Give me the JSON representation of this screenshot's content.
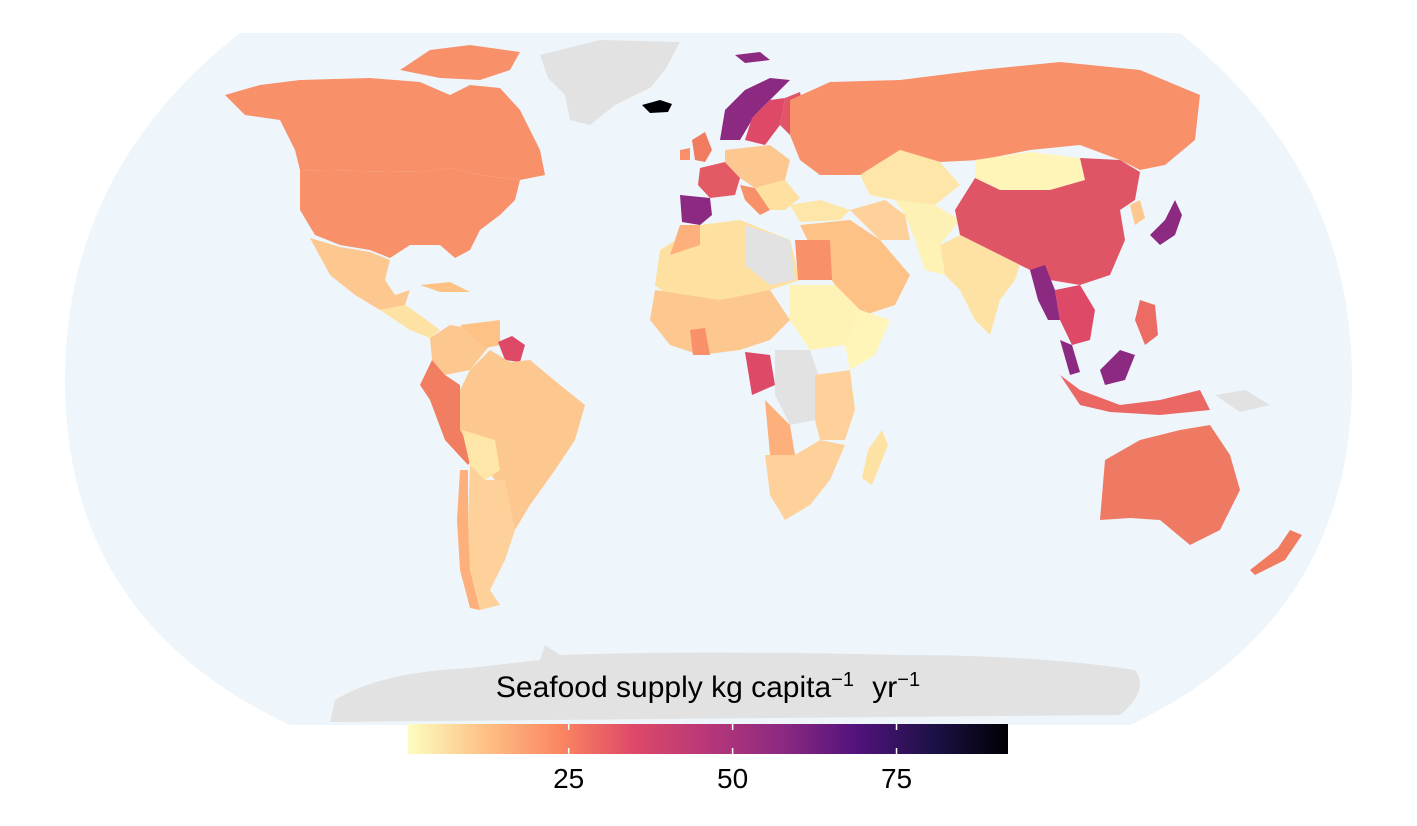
{
  "legend": {
    "title_main": "Seafood  supply  kg  capita",
    "title_sup1": "−1",
    "title_mid": " yr",
    "title_sup2": "−1",
    "min": 0.5,
    "max": 92,
    "ticks": [
      {
        "value": 25,
        "label": "25"
      },
      {
        "value": 50,
        "label": "50"
      },
      {
        "value": 75,
        "label": "75"
      }
    ],
    "palette": "magma",
    "gradient_stops": [
      "#fcfdbf",
      "#fec287",
      "#fb8861",
      "#de4968",
      "#b73779",
      "#8c2981",
      "#51127c",
      "#1d1147",
      "#000004"
    ]
  },
  "colors": {
    "ocean": "#eef6fc",
    "no_data": "#e2e2e2",
    "background": "#ffffff"
  }
}
